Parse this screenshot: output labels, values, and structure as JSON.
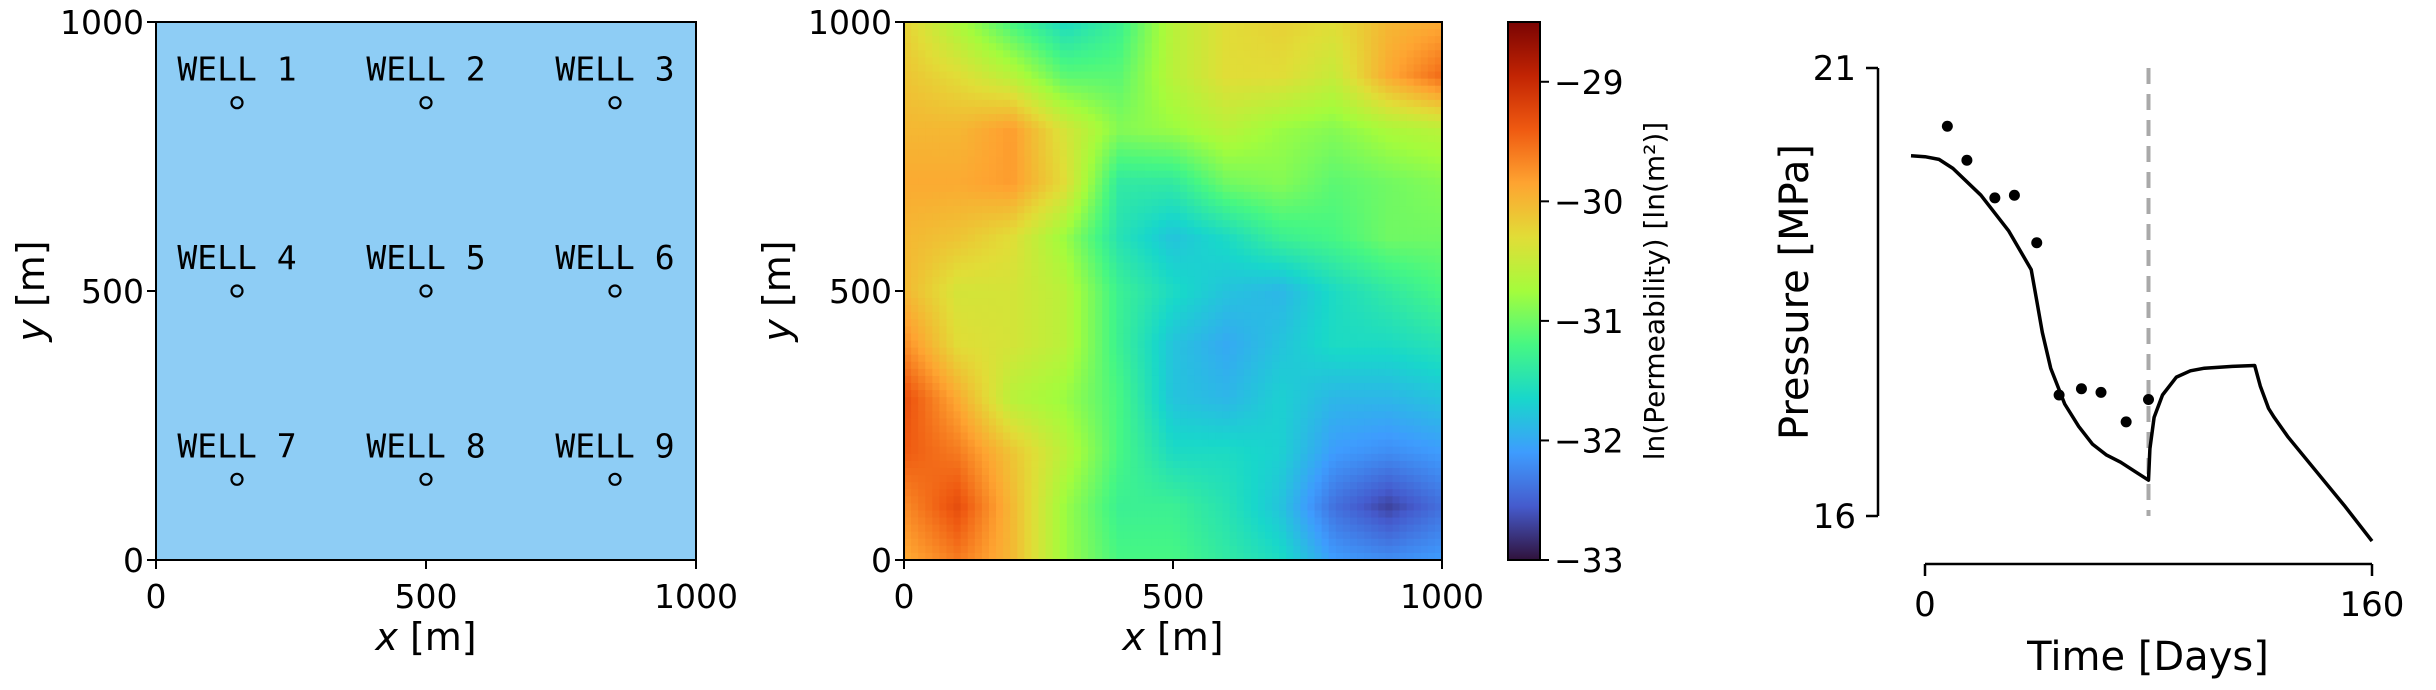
{
  "chart_data": [
    {
      "type": "scatter",
      "title": "",
      "xlabel_var": "x",
      "xlabel_unit": "[m]",
      "ylabel_var": "y",
      "ylabel_unit": "[m]",
      "xlim": [
        0,
        1000
      ],
      "ylim": [
        0,
        1000
      ],
      "xticks": [
        "0",
        "500",
        "1000"
      ],
      "yticks": [
        "0",
        "500",
        "1000"
      ],
      "background_color": "#8ecdf5",
      "wells": [
        {
          "label": "WELL 1",
          "x": 150,
          "y": 850
        },
        {
          "label": "WELL 2",
          "x": 500,
          "y": 850
        },
        {
          "label": "WELL 3",
          "x": 850,
          "y": 850
        },
        {
          "label": "WELL 4",
          "x": 150,
          "y": 500
        },
        {
          "label": "WELL 5",
          "x": 500,
          "y": 500
        },
        {
          "label": "WELL 6",
          "x": 850,
          "y": 500
        },
        {
          "label": "WELL 7",
          "x": 150,
          "y": 150
        },
        {
          "label": "WELL 8",
          "x": 500,
          "y": 150
        },
        {
          "label": "WELL 9",
          "x": 850,
          "y": 150
        }
      ]
    },
    {
      "type": "heatmap",
      "title": "",
      "xlabel_var": "x",
      "xlabel_unit": "[m]",
      "ylabel_var": "y",
      "ylabel_unit": "[m]",
      "xlim": [
        0,
        1000
      ],
      "ylim": [
        0,
        1000
      ],
      "xticks": [
        "0",
        "500",
        "1000"
      ],
      "yticks": [
        "0",
        "500",
        "1000"
      ],
      "colorbar_label": "ln(Permeability) [ln(m²)]",
      "colorbar_range": [
        -33,
        -28.5
      ],
      "colorbar_ticks": [
        -29,
        -30,
        -31,
        -32,
        -33
      ],
      "colorbar_tick_labels": [
        "−29",
        "−30",
        "−31",
        "−32",
        "−33"
      ],
      "colormap": "turbo",
      "grid_x": [
        0,
        100,
        200,
        300,
        400,
        500,
        600,
        700,
        800,
        900,
        1000
      ],
      "grid_y": [
        1000,
        900,
        800,
        700,
        600,
        500,
        400,
        300,
        200,
        100,
        0
      ],
      "values": [
        [
          -30.2,
          -30.7,
          -31.2,
          -31.6,
          -31.3,
          -30.6,
          -30.3,
          -30.2,
          -30.3,
          -30.0,
          -29.9
        ],
        [
          -30.1,
          -30.3,
          -30.6,
          -31.1,
          -31.1,
          -30.6,
          -30.3,
          -30.3,
          -30.5,
          -29.9,
          -29.5
        ],
        [
          -30.0,
          -30.0,
          -29.8,
          -30.4,
          -30.9,
          -30.8,
          -30.6,
          -30.8,
          -30.9,
          -30.7,
          -30.6
        ],
        [
          -29.9,
          -29.9,
          -29.8,
          -30.3,
          -31.4,
          -31.4,
          -31.0,
          -30.9,
          -31.1,
          -31.0,
          -30.9
        ],
        [
          -30.0,
          -30.1,
          -30.3,
          -30.8,
          -31.5,
          -31.8,
          -31.6,
          -31.3,
          -31.2,
          -31.0,
          -31.0
        ],
        [
          -30.0,
          -30.4,
          -30.4,
          -30.6,
          -31.3,
          -31.6,
          -31.8,
          -31.9,
          -31.6,
          -31.4,
          -31.2
        ],
        [
          -29.7,
          -30.3,
          -30.4,
          -30.6,
          -31.3,
          -31.8,
          -32.0,
          -31.8,
          -31.6,
          -31.6,
          -31.5
        ],
        [
          -29.3,
          -29.9,
          -30.6,
          -30.8,
          -31.2,
          -31.8,
          -31.9,
          -31.7,
          -31.9,
          -31.9,
          -31.8
        ],
        [
          -29.4,
          -29.6,
          -30.1,
          -30.6,
          -31.2,
          -31.6,
          -31.6,
          -31.7,
          -32.1,
          -32.2,
          -32.1
        ],
        [
          -29.7,
          -29.3,
          -30.0,
          -30.8,
          -31.3,
          -31.3,
          -31.5,
          -31.8,
          -32.4,
          -32.7,
          -32.4
        ],
        [
          -29.9,
          -29.6,
          -30.0,
          -30.8,
          -31.2,
          -31.2,
          -31.4,
          -31.6,
          -32.1,
          -32.2,
          -32.1
        ]
      ]
    },
    {
      "type": "line",
      "title": "",
      "xlabel": "Time [Days]",
      "ylabel": "Pressure [MPa]",
      "xlim": [
        0,
        160
      ],
      "ylim": [
        16,
        21
      ],
      "xticks": [
        "0",
        "160"
      ],
      "yticks": [
        "16",
        "21"
      ],
      "vline_x": 80,
      "series": [
        {
          "kind": "line",
          "x": [
            -5,
            0,
            5,
            10,
            20,
            30,
            38,
            40,
            42,
            45,
            50,
            55,
            60,
            65,
            70,
            75,
            80,
            80.5,
            82,
            85,
            90,
            95,
            100,
            110,
            118,
            120,
            123,
            125,
            130,
            140,
            150,
            160
          ],
          "y": [
            20.02,
            20.01,
            19.98,
            19.88,
            19.58,
            19.18,
            18.75,
            18.4,
            18.05,
            17.65,
            17.25,
            17.0,
            16.8,
            16.68,
            16.6,
            16.5,
            16.4,
            16.75,
            17.1,
            17.35,
            17.55,
            17.62,
            17.65,
            17.67,
            17.68,
            17.45,
            17.2,
            17.1,
            16.88,
            16.5,
            16.12,
            15.72
          ]
        },
        {
          "kind": "scatter",
          "x": [
            8,
            15,
            25,
            32,
            40,
            48,
            56,
            63,
            72,
            80
          ],
          "y": [
            20.35,
            19.97,
            19.55,
            19.58,
            19.05,
            17.35,
            17.42,
            17.38,
            17.05,
            17.3
          ]
        }
      ]
    }
  ]
}
